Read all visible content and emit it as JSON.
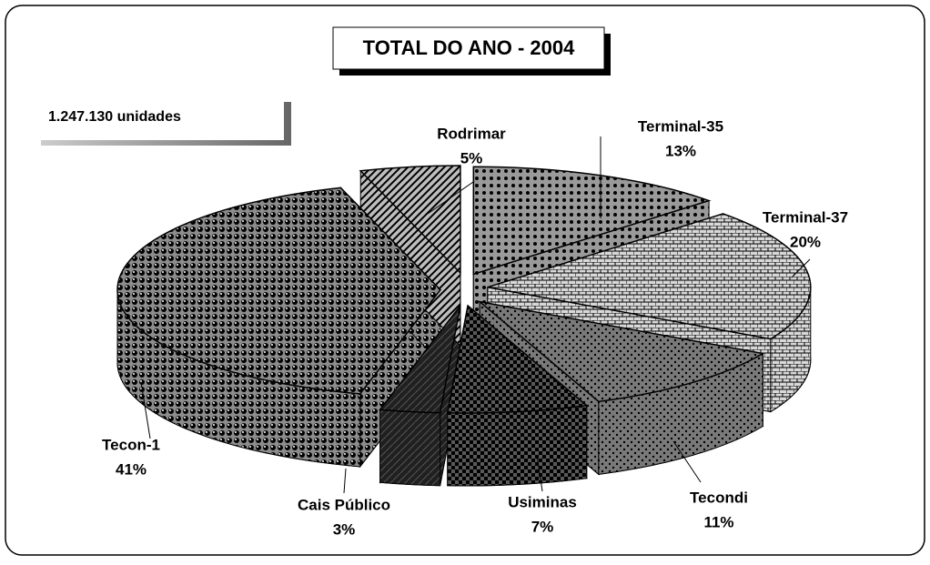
{
  "chart_data": {
    "type": "pie",
    "title": "TOTAL DO ANO - 2004",
    "annotation": "1.247.130 unidades",
    "categories": [
      "Terminal-35",
      "Terminal-37",
      "Tecondi",
      "Usiminas",
      "Cais Público",
      "Tecon-1",
      "Rodrimar"
    ],
    "values": [
      13,
      20,
      11,
      7,
      3,
      41,
      5
    ],
    "value_labels": [
      "13%",
      "20%",
      "11%",
      "7%",
      "3%",
      "41%",
      "5%"
    ],
    "colors": [
      "#9a9a9a",
      "#d8d8d8",
      "#7a7a7a",
      "#5a5a5a",
      "#202020",
      "#8c8c8c",
      "#bdbdbd"
    ]
  }
}
